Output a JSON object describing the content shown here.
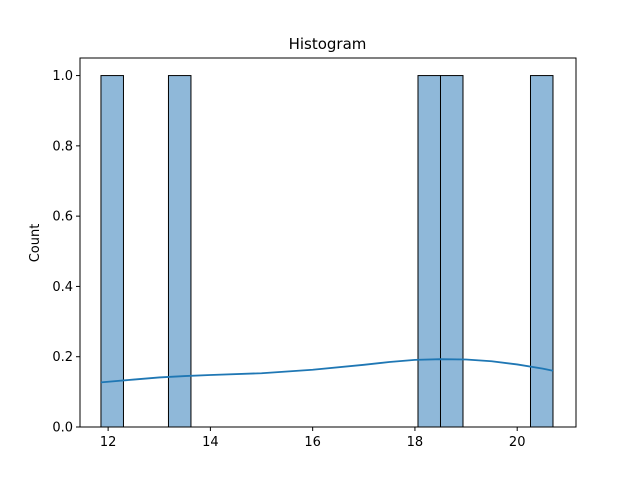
{
  "chart_data": {
    "type": "bar",
    "title": "Histogram",
    "xlabel": "",
    "ylabel": "Count",
    "xlim": [
      11.45,
      21.15
    ],
    "ylim": [
      0,
      1.05
    ],
    "bin_width": 0.44,
    "bins": [
      {
        "start": 11.86,
        "end": 12.3,
        "count": 1
      },
      {
        "start": 13.18,
        "end": 13.62,
        "count": 1
      },
      {
        "start": 18.06,
        "end": 18.5,
        "count": 1
      },
      {
        "start": 18.5,
        "end": 18.94,
        "count": 1
      },
      {
        "start": 20.26,
        "end": 20.7,
        "count": 1
      }
    ],
    "x_ticks": [
      12,
      14,
      16,
      18,
      20
    ],
    "y_ticks": [
      0.0,
      0.2,
      0.4,
      0.6,
      0.8,
      1.0
    ],
    "x_tick_labels": [
      "12",
      "14",
      "16",
      "18",
      "20"
    ],
    "y_tick_labels": [
      "0.0",
      "0.2",
      "0.4",
      "0.6",
      "0.8",
      "1.0"
    ],
    "kde": {
      "x": [
        11.86,
        12.5,
        13.0,
        13.5,
        14.0,
        15.0,
        16.0,
        17.0,
        17.5,
        18.0,
        18.5,
        19.0,
        19.5,
        20.0,
        20.5,
        20.7
      ],
      "y": [
        0.127,
        0.135,
        0.141,
        0.145,
        0.148,
        0.153,
        0.163,
        0.177,
        0.185,
        0.191,
        0.193,
        0.192,
        0.187,
        0.178,
        0.166,
        0.16
      ]
    },
    "grid": false,
    "colors": {
      "bar_fill": "#8fb8d9",
      "bar_edge": "#000000",
      "kde_line": "#1f77b4"
    }
  }
}
